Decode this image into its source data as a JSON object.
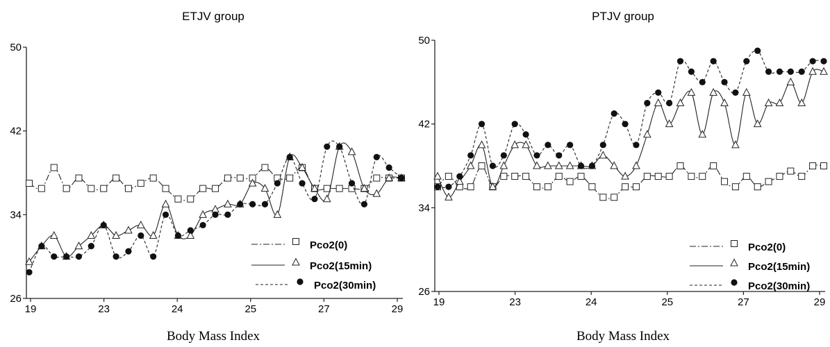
{
  "chart_data": [
    {
      "type": "line",
      "title": "ETJV group",
      "xlabel": "Body Mass Index",
      "ylabel": "",
      "x_ticks": [
        "19",
        "23",
        "24",
        "25",
        "27",
        "29"
      ],
      "y_ticks": [
        "26",
        "34",
        "42",
        "50"
      ],
      "ylim": [
        26,
        50
      ],
      "legend_position": "bottom-right",
      "grid": false,
      "series": [
        {
          "name": "Pco2(0)",
          "marker": "square",
          "dash": "dash-dot",
          "values": [
            37,
            36.5,
            38.5,
            36.5,
            37.5,
            36.5,
            36.5,
            37.5,
            36.5,
            37,
            37.5,
            36.5,
            35.5,
            35.5,
            36.5,
            36.5,
            37.5,
            37.5,
            37.5,
            38.5,
            37.5,
            37.5,
            38.5,
            36.5,
            36.5,
            36.5,
            36.5,
            36.5,
            37.5,
            37.5,
            37.5
          ]
        },
        {
          "name": "Pco2(15min)",
          "marker": "triangle",
          "dash": "solid",
          "values": [
            29.5,
            31,
            32,
            30,
            31,
            32,
            33,
            32,
            32.5,
            33,
            32,
            35,
            32,
            32,
            34,
            34.5,
            35,
            35,
            37,
            36.5,
            34,
            39.5,
            38.5,
            36.5,
            35.5,
            40.5,
            40,
            36.5,
            36,
            37.5,
            37.5
          ]
        },
        {
          "name": "Pco2(30min)",
          "marker": "circle",
          "dash": "dashed",
          "values": [
            28.5,
            31,
            30,
            30,
            30,
            31,
            33,
            30,
            30.5,
            32,
            30,
            34,
            32,
            32.5,
            33,
            34,
            34,
            35,
            35,
            35,
            37,
            39.5,
            37,
            35.5,
            40.5,
            40.5,
            37,
            35,
            39.5,
            38.5,
            37.5
          ]
        }
      ]
    },
    {
      "type": "line",
      "title": "PTJV group",
      "xlabel": "Body Mass Index",
      "ylabel": "",
      "x_ticks": [
        "19",
        "23",
        "24",
        "25",
        "27",
        "29"
      ],
      "y_ticks": [
        "26",
        "34",
        "42",
        "50"
      ],
      "ylim": [
        26,
        50
      ],
      "legend_position": "bottom-right",
      "grid": false,
      "series": [
        {
          "name": "Pco2(0)",
          "marker": "square",
          "dash": "dash-dot",
          "values": [
            36,
            37,
            36,
            36,
            38,
            36,
            37,
            37,
            37,
            36,
            36,
            37,
            36.5,
            37,
            36,
            35,
            35,
            36,
            36,
            37,
            37,
            37,
            38,
            37,
            37,
            38,
            36.5,
            36,
            37,
            36,
            36.5,
            37,
            37.5,
            37,
            38,
            38
          ]
        },
        {
          "name": "Pco2(15min)",
          "marker": "triangle",
          "dash": "solid",
          "values": [
            37,
            35,
            36.5,
            38,
            40,
            36,
            38,
            40,
            40,
            38,
            38,
            38,
            38,
            38,
            38,
            39,
            38,
            37,
            38,
            41,
            44,
            42,
            44,
            45,
            41,
            45,
            44,
            40,
            45,
            42,
            44,
            44,
            46,
            44,
            47,
            47
          ]
        },
        {
          "name": "Pco2(30min)",
          "marker": "circle",
          "dash": "dashed",
          "values": [
            36,
            36,
            37,
            39,
            42,
            38,
            39,
            42,
            41,
            39,
            40,
            39,
            40,
            38,
            38,
            40,
            43,
            42,
            40,
            44,
            45,
            44,
            48,
            47,
            46,
            48,
            46,
            45,
            48,
            49,
            47,
            47,
            47,
            47,
            48,
            48
          ]
        }
      ]
    }
  ]
}
